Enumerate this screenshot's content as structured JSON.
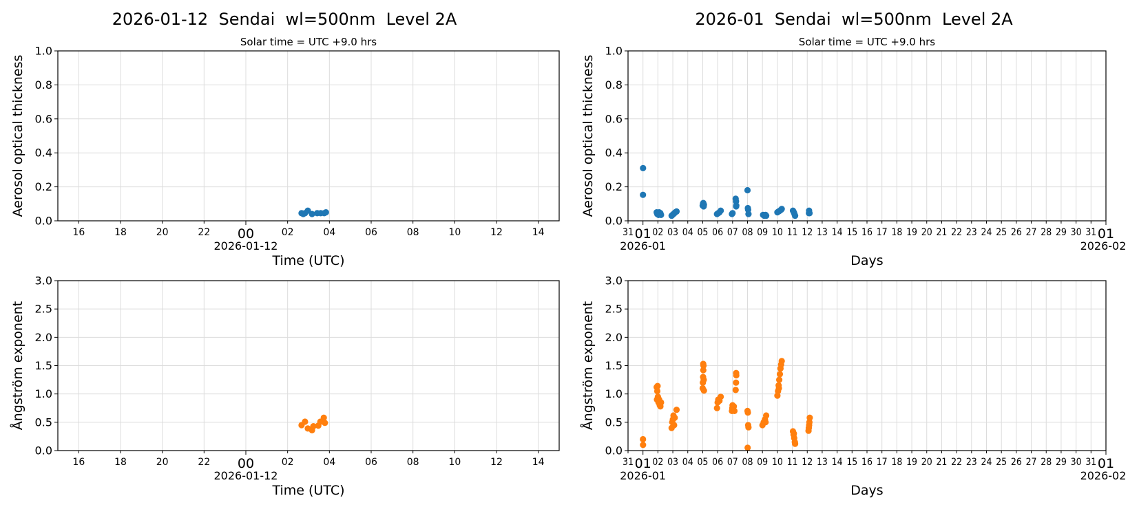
{
  "chart_data": [
    {
      "type": "scatter",
      "title": "2026-01-12  Sendai  wl=500nm  Level 2A",
      "subtitle": "Solar time = UTC +9.0 hrs",
      "xlabel": "Time (UTC)",
      "ylabel": "Aerosol optical thickness",
      "xlim": [
        "2026-01-11T15:00",
        "2026-01-12T15:00"
      ],
      "ylim": [
        0,
        1.0
      ],
      "xticks": [
        "16",
        "18",
        "20",
        "22",
        "00",
        "02",
        "04",
        "06",
        "08",
        "10",
        "12",
        "14"
      ],
      "xtick_date_label": "2026-01-12",
      "yticks": [
        "0.0",
        "0.2",
        "0.4",
        "0.6",
        "0.8",
        "1.0"
      ],
      "grid": true,
      "color": "#1f77b4",
      "points": [
        [
          "2026-01-12T02:40",
          0.045
        ],
        [
          "2026-01-12T02:45",
          0.04
        ],
        [
          "2026-01-12T02:50",
          0.045
        ],
        [
          "2026-01-12T02:58",
          0.06
        ],
        [
          "2026-01-12T03:10",
          0.04
        ],
        [
          "2026-01-12T03:25",
          0.045
        ],
        [
          "2026-01-12T03:35",
          0.045
        ],
        [
          "2026-01-12T03:45",
          0.045
        ],
        [
          "2026-01-12T03:50",
          0.05
        ]
      ]
    },
    {
      "type": "scatter",
      "title": "2026-01  Sendai  wl=500nm  Level 2A",
      "subtitle": "Solar time = UTC +9.0 hrs",
      "xlabel": "Days",
      "ylabel": "Aerosol optical thickness",
      "xlim": [
        "2025-12-31T00:00",
        "2026-02-01T00:00"
      ],
      "ylim": [
        0,
        1.0
      ],
      "xticks": [
        "31",
        "01",
        "02",
        "03",
        "04",
        "05",
        "06",
        "07",
        "08",
        "09",
        "10",
        "11",
        "12",
        "13",
        "14",
        "15",
        "16",
        "17",
        "18",
        "19",
        "20",
        "21",
        "22",
        "23",
        "24",
        "25",
        "26",
        "27",
        "28",
        "29",
        "30",
        "31",
        "01"
      ],
      "xtick_date_labels": [
        "2026-01",
        "2026-02"
      ],
      "yticks": [
        "0.0",
        "0.2",
        "0.4",
        "0.6",
        "0.8",
        "1.0"
      ],
      "grid": true,
      "color": "#1f77b4",
      "points": [
        [
          "2026-01-01T00:10",
          0.31
        ],
        [
          "2026-01-01T00:00",
          0.153
        ],
        [
          "2026-01-01T22:00",
          0.05
        ],
        [
          "2026-01-01T23:00",
          0.04
        ],
        [
          "2026-01-02T00:00",
          0.045
        ],
        [
          "2026-01-02T01:00",
          0.035
        ],
        [
          "2026-01-02T02:00",
          0.05
        ],
        [
          "2026-01-02T03:00",
          0.04
        ],
        [
          "2026-01-02T04:00",
          0.045
        ],
        [
          "2026-01-02T05:00",
          0.035
        ],
        [
          "2026-01-02T22:00",
          0.03
        ],
        [
          "2026-01-02T23:30",
          0.035
        ],
        [
          "2026-01-03T01:00",
          0.04
        ],
        [
          "2026-01-03T02:30",
          0.045
        ],
        [
          "2026-01-03T04:00",
          0.05
        ],
        [
          "2026-01-03T06:00",
          0.055
        ],
        [
          "2026-01-05T00:00",
          0.09
        ],
        [
          "2026-01-05T00:30",
          0.1
        ],
        [
          "2026-01-05T01:00",
          0.105
        ],
        [
          "2026-01-05T01:30",
          0.085
        ],
        [
          "2026-01-05T02:00",
          0.095
        ],
        [
          "2026-01-05T23:00",
          0.04
        ],
        [
          "2026-01-06T01:00",
          0.045
        ],
        [
          "2026-01-06T03:00",
          0.05
        ],
        [
          "2026-01-06T05:00",
          0.06
        ],
        [
          "2026-01-06T23:00",
          0.04
        ],
        [
          "2026-01-07T00:00",
          0.045
        ],
        [
          "2026-01-07T05:00",
          0.13
        ],
        [
          "2026-01-07T05:30",
          0.115
        ],
        [
          "2026-01-07T06:00",
          0.09
        ],
        [
          "2026-01-07T05:45",
          0.085
        ],
        [
          "2026-01-08T00:00",
          0.18
        ],
        [
          "2026-01-08T00:30",
          0.075
        ],
        [
          "2026-01-08T01:00",
          0.065
        ],
        [
          "2026-01-08T01:30",
          0.04
        ],
        [
          "2026-01-09T01:00",
          0.035
        ],
        [
          "2026-01-09T03:00",
          0.03
        ],
        [
          "2026-01-09T05:00",
          0.035
        ],
        [
          "2026-01-09T06:00",
          0.03
        ],
        [
          "2026-01-10T00:00",
          0.05
        ],
        [
          "2026-01-10T02:00",
          0.055
        ],
        [
          "2026-01-10T04:00",
          0.06
        ],
        [
          "2026-01-10T06:00",
          0.065
        ],
        [
          "2026-01-10T07:00",
          0.07
        ],
        [
          "2026-01-11T01:00",
          0.06
        ],
        [
          "2026-01-11T02:30",
          0.05
        ],
        [
          "2026-01-11T03:30",
          0.04
        ],
        [
          "2026-01-11T04:30",
          0.03
        ],
        [
          "2026-01-12T02:40",
          0.045
        ],
        [
          "2026-01-12T02:58",
          0.06
        ],
        [
          "2026-01-12T03:45",
          0.045
        ]
      ]
    },
    {
      "type": "scatter",
      "xlabel": "Time (UTC)",
      "ylabel": "Ångström exponent",
      "xlim": [
        "2026-01-11T15:00",
        "2026-01-12T15:00"
      ],
      "ylim": [
        0,
        3.0
      ],
      "xticks": [
        "16",
        "18",
        "20",
        "22",
        "00",
        "02",
        "04",
        "06",
        "08",
        "10",
        "12",
        "14"
      ],
      "xtick_date_label": "2026-01-12",
      "yticks": [
        "0.0",
        "0.5",
        "1.0",
        "1.5",
        "2.0",
        "2.5",
        "3.0"
      ],
      "grid": true,
      "color": "#ff7f0e",
      "points": [
        [
          "2026-01-12T02:40",
          0.45
        ],
        [
          "2026-01-12T02:50",
          0.51
        ],
        [
          "2026-01-12T02:58",
          0.39
        ],
        [
          "2026-01-12T03:10",
          0.36
        ],
        [
          "2026-01-12T03:14",
          0.43
        ],
        [
          "2026-01-12T03:28",
          0.44
        ],
        [
          "2026-01-12T03:34",
          0.51
        ],
        [
          "2026-01-12T03:44",
          0.58
        ],
        [
          "2026-01-12T03:47",
          0.49
        ]
      ]
    },
    {
      "type": "scatter",
      "xlabel": "Days",
      "ylabel": "Ångström exponent",
      "xlim": [
        "2025-12-31T00:00",
        "2026-02-01T00:00"
      ],
      "ylim": [
        0,
        3.0
      ],
      "xticks": [
        "31",
        "01",
        "02",
        "03",
        "04",
        "05",
        "06",
        "07",
        "08",
        "09",
        "10",
        "11",
        "12",
        "13",
        "14",
        "15",
        "16",
        "17",
        "18",
        "19",
        "20",
        "21",
        "22",
        "23",
        "24",
        "25",
        "26",
        "27",
        "28",
        "29",
        "30",
        "31",
        "01"
      ],
      "xtick_date_labels": [
        "2026-01",
        "2026-02"
      ],
      "yticks": [
        "0.0",
        "0.5",
        "1.0",
        "1.5",
        "2.0",
        "2.5",
        "3.0"
      ],
      "grid": true,
      "color": "#ff7f0e",
      "points": [
        [
          "2026-01-01T00:00",
          0.2
        ],
        [
          "2026-01-01T00:10",
          0.1
        ],
        [
          "2026-01-01T22:00",
          1.12
        ],
        [
          "2026-01-01T22:30",
          0.9
        ],
        [
          "2026-01-01T23:00",
          1.05
        ],
        [
          "2026-01-01T23:30",
          1.14
        ],
        [
          "2026-01-02T00:00",
          0.95
        ],
        [
          "2026-01-02T01:00",
          0.85
        ],
        [
          "2026-01-02T02:00",
          0.9
        ],
        [
          "2026-01-02T03:00",
          0.8
        ],
        [
          "2026-01-02T04:00",
          0.78
        ],
        [
          "2026-01-02T05:00",
          0.85
        ],
        [
          "2026-01-02T22:00",
          0.4
        ],
        [
          "2026-01-02T23:00",
          0.5
        ],
        [
          "2026-01-03T00:00",
          0.55
        ],
        [
          "2026-01-03T01:00",
          0.62
        ],
        [
          "2026-01-03T02:00",
          0.45
        ],
        [
          "2026-01-03T03:00",
          0.58
        ],
        [
          "2026-01-03T06:00",
          0.72
        ],
        [
          "2026-01-05T00:00",
          1.1
        ],
        [
          "2026-01-05T00:20",
          1.2
        ],
        [
          "2026-01-05T00:40",
          1.3
        ],
        [
          "2026-01-05T00:50",
          1.53
        ],
        [
          "2026-01-05T01:00",
          1.42
        ],
        [
          "2026-01-05T01:20",
          1.5
        ],
        [
          "2026-01-05T01:40",
          1.25
        ],
        [
          "2026-01-05T02:00",
          1.06
        ],
        [
          "2026-01-05T23:00",
          0.75
        ],
        [
          "2026-01-06T00:00",
          0.85
        ],
        [
          "2026-01-06T01:00",
          0.9
        ],
        [
          "2026-01-06T03:00",
          0.88
        ],
        [
          "2026-01-06T05:00",
          0.95
        ],
        [
          "2026-01-06T23:00",
          0.7
        ],
        [
          "2026-01-06T23:30",
          0.75
        ],
        [
          "2026-01-07T00:00",
          0.8
        ],
        [
          "2026-01-07T02:00",
          0.78
        ],
        [
          "2026-01-07T03:00",
          0.7
        ],
        [
          "2026-01-07T05:00",
          1.07
        ],
        [
          "2026-01-07T05:30",
          1.2
        ],
        [
          "2026-01-07T06:00",
          1.33
        ],
        [
          "2026-01-07T05:45",
          1.37
        ],
        [
          "2026-01-08T00:00",
          0.7
        ],
        [
          "2026-01-08T00:30",
          0.67
        ],
        [
          "2026-01-08T01:00",
          0.45
        ],
        [
          "2026-01-08T01:30",
          0.41
        ],
        [
          "2026-01-08T00:15",
          0.05
        ],
        [
          "2026-01-09T00:00",
          0.45
        ],
        [
          "2026-01-09T02:00",
          0.5
        ],
        [
          "2026-01-09T04:00",
          0.55
        ],
        [
          "2026-01-09T05:00",
          0.5
        ],
        [
          "2026-01-09T06:00",
          0.62
        ],
        [
          "2026-01-10T00:00",
          0.97
        ],
        [
          "2026-01-10T01:00",
          1.05
        ],
        [
          "2026-01-10T02:00",
          1.15
        ],
        [
          "2026-01-10T02:30",
          1.1
        ],
        [
          "2026-01-10T03:00",
          1.25
        ],
        [
          "2026-01-10T04:00",
          1.35
        ],
        [
          "2026-01-10T05:00",
          1.45
        ],
        [
          "2026-01-10T06:00",
          1.52
        ],
        [
          "2026-01-10T07:00",
          1.58
        ],
        [
          "2026-01-11T01:00",
          0.34
        ],
        [
          "2026-01-11T02:00",
          0.28
        ],
        [
          "2026-01-11T02:30",
          0.3
        ],
        [
          "2026-01-11T03:00",
          0.22
        ],
        [
          "2026-01-11T04:00",
          0.15
        ],
        [
          "2026-01-11T04:30",
          0.12
        ],
        [
          "2026-01-12T02:00",
          0.35
        ],
        [
          "2026-01-12T02:30",
          0.4
        ],
        [
          "2026-01-12T03:00",
          0.45
        ],
        [
          "2026-01-12T03:30",
          0.5
        ],
        [
          "2026-01-12T04:00",
          0.58
        ]
      ]
    }
  ]
}
